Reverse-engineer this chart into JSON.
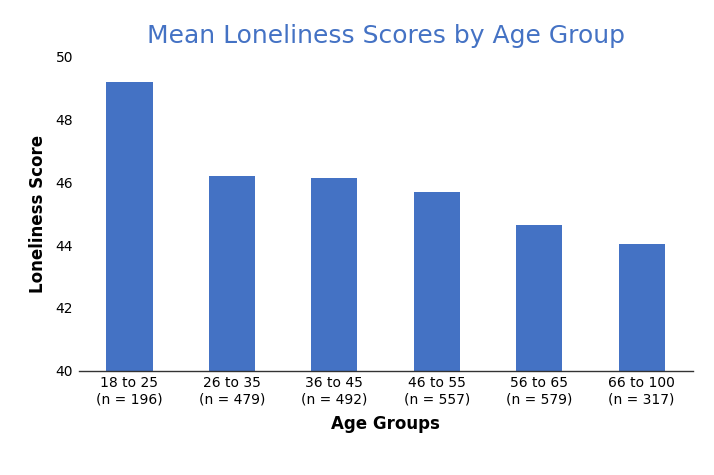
{
  "title": "Mean Loneliness Scores by Age Group",
  "title_color": "#4472C4",
  "xlabel": "Age Groups",
  "ylabel": "Loneliness Score",
  "categories": [
    "18 to 25\n(n = 196)",
    "26 to 35\n(n = 479)",
    "36 to 45\n(n = 492)",
    "46 to 55\n(n = 557)",
    "56 to 65\n(n = 579)",
    "66 to 100\n(n = 317)"
  ],
  "values": [
    49.2,
    46.2,
    46.15,
    45.7,
    44.65,
    44.05
  ],
  "bar_color": "#4472C4",
  "ylim": [
    40,
    50
  ],
  "yticks": [
    40,
    42,
    44,
    46,
    48,
    50
  ],
  "background_color": "#ffffff",
  "title_fontsize": 18,
  "axis_label_fontsize": 12,
  "tick_fontsize": 10,
  "bar_width": 0.45
}
